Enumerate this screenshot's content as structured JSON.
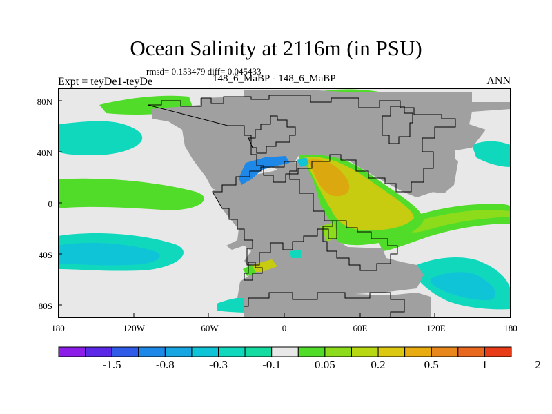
{
  "title": "Ocean Salinity at 2116m (in PSU)",
  "stats": "rmsd= 0.153479 diff= 0.045433",
  "left_header": "Expt = teyDe1-teyDe",
  "center_header": "148_6_MaBP - 148_6_MaBP",
  "right_header": "ANN",
  "lat_labels": [
    "80N",
    "40N",
    "0",
    "40S",
    "80S"
  ],
  "lon_labels": [
    "180",
    "120W",
    "60W",
    "0",
    "60E",
    "120E",
    "180"
  ],
  "colorbar": {
    "colors": [
      "#8c1ce8",
      "#5a28e6",
      "#2f5be8",
      "#1e88e8",
      "#18a6e2",
      "#10c4d8",
      "#10d8bc",
      "#14dca0",
      "#e8e8e8",
      "#52dc2a",
      "#8cdc1c",
      "#b8d812",
      "#dcc810",
      "#e8ac10",
      "#e8881c",
      "#e86820",
      "#e83c18"
    ],
    "labels": [
      "-1.5",
      "-0.8",
      "-0.3",
      "-0.1",
      "0.05",
      "0.2",
      "0.5",
      "1",
      "2"
    ]
  },
  "map_colors": {
    "ocean_neutral": "#e8e8e8",
    "land": "#a0a0a0",
    "pos_low": "#52dc2a",
    "pos_mid": "#8cdc1c",
    "pos_high": "#c8cc10",
    "pos_max": "#dca810",
    "neg_low": "#10d8bc",
    "neg_mid": "#10c4d8",
    "neg_high": "#1e88e8"
  }
}
